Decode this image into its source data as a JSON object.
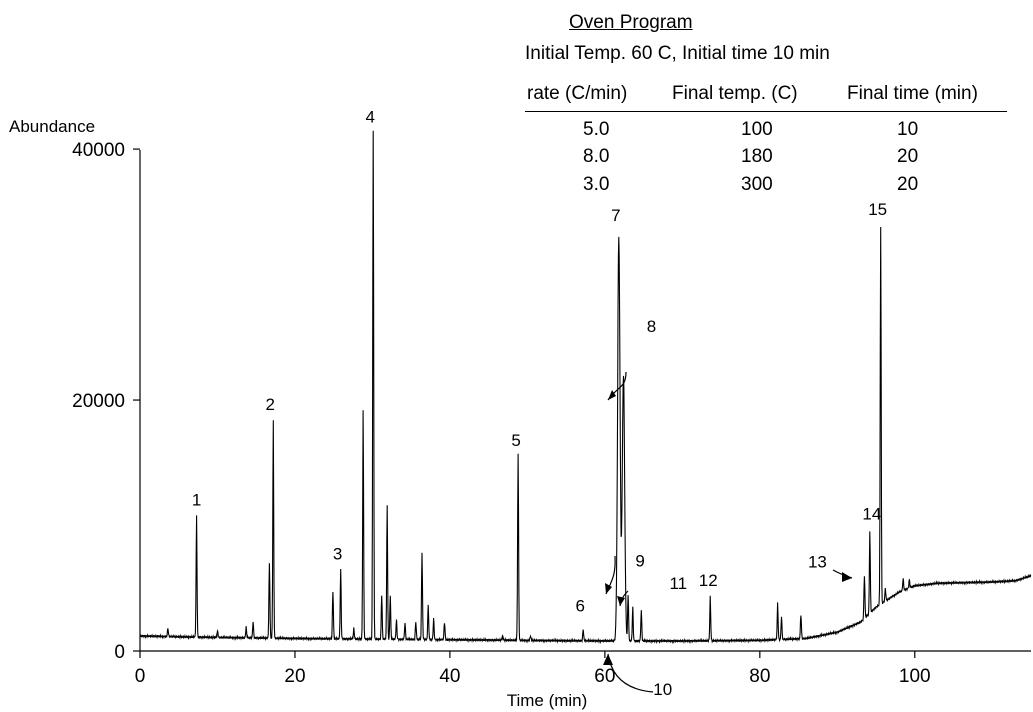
{
  "oven_program": {
    "title": "Oven Program",
    "initial": "Initial Temp. 60 C, Initial time 10 min",
    "headers": [
      "rate (C/min)",
      "Final temp. (C)",
      "Final time (min)"
    ],
    "rows": [
      [
        "5.0",
        "100",
        "10"
      ],
      [
        "8.0",
        "180",
        "20"
      ],
      [
        "3.0",
        "300",
        "20"
      ]
    ]
  },
  "chart_data": {
    "type": "line",
    "title": "",
    "xlabel": "Time (min)",
    "ylabel": "Abundance",
    "xlim": [
      0,
      115
    ],
    "ylim": [
      0,
      42000
    ],
    "xticks": [
      0,
      20,
      40,
      60,
      80,
      100
    ],
    "yticks": [
      0,
      20000,
      40000
    ],
    "grid": false,
    "line_color": "#000000",
    "baseline_points": [
      [
        0,
        1200
      ],
      [
        8,
        1100
      ],
      [
        20,
        1000
      ],
      [
        40,
        900
      ],
      [
        55,
        820
      ],
      [
        62,
        800
      ],
      [
        70,
        800
      ],
      [
        80,
        850
      ],
      [
        86,
        1000
      ],
      [
        90,
        1500
      ],
      [
        93,
        2300
      ],
      [
        95,
        3500
      ],
      [
        98,
        4700
      ],
      [
        100,
        5200
      ],
      [
        103,
        5400
      ],
      [
        110,
        5500
      ],
      [
        113,
        5600
      ],
      [
        115,
        6000
      ]
    ],
    "peaks": [
      {
        "x": 3.6,
        "y": 1800
      },
      {
        "x": 7.3,
        "y": 10800
      },
      {
        "x": 10,
        "y": 1600
      },
      {
        "x": 13.7,
        "y": 1900
      },
      {
        "x": 14.6,
        "y": 2300
      },
      {
        "x": 16.7,
        "y": 7000
      },
      {
        "x": 17.2,
        "y": 18400
      },
      {
        "x": 24.9,
        "y": 4800
      },
      {
        "x": 25.9,
        "y": 6500
      },
      {
        "x": 27.6,
        "y": 1800
      },
      {
        "x": 28.8,
        "y": 19200
      },
      {
        "x": 30.1,
        "y": 41500
      },
      {
        "x": 31.2,
        "y": 4500
      },
      {
        "x": 31.9,
        "y": 11700
      },
      {
        "x": 32.3,
        "y": 4500
      },
      {
        "x": 33.1,
        "y": 2500
      },
      {
        "x": 34.2,
        "y": 2200
      },
      {
        "x": 35.6,
        "y": 2300
      },
      {
        "x": 36.4,
        "y": 7800
      },
      {
        "x": 37.2,
        "y": 3600
      },
      {
        "x": 37.9,
        "y": 2600
      },
      {
        "x": 39.3,
        "y": 2300
      },
      {
        "x": 46.8,
        "y": 1200
      },
      {
        "x": 48.8,
        "y": 15700
      },
      {
        "x": 50.4,
        "y": 1200
      },
      {
        "x": 57.2,
        "y": 1700
      },
      {
        "x": 61.8,
        "y": 33000
      },
      {
        "x": 62.4,
        "y": 22000
      },
      {
        "x": 63.0,
        "y": 4500
      },
      {
        "x": 63.6,
        "y": 3500
      },
      {
        "x": 64.7,
        "y": 3200
      },
      {
        "x": 73.6,
        "y": 4300
      },
      {
        "x": 82.3,
        "y": 3800
      },
      {
        "x": 82.8,
        "y": 2700
      },
      {
        "x": 85.3,
        "y": 2900
      },
      {
        "x": 93.5,
        "y": 6000
      },
      {
        "x": 94.2,
        "y": 9600
      },
      {
        "x": 95.6,
        "y": 33700
      },
      {
        "x": 96.2,
        "y": 5000
      },
      {
        "x": 98.5,
        "y": 5800
      },
      {
        "x": 99.3,
        "y": 5700
      }
    ],
    "peak_labels": [
      {
        "label": "1",
        "x": 7.3,
        "y": 10800
      },
      {
        "label": "2",
        "x": 17.2,
        "y": 18400
      },
      {
        "label": "3",
        "x": 25.9,
        "y": 6500
      },
      {
        "label": "4",
        "x": 30.1,
        "y": 41500
      },
      {
        "label": "5",
        "x": 48.8,
        "y": 15700
      },
      {
        "label": "6",
        "x": 57.2,
        "y": 1700
      },
      {
        "label": "7",
        "x": 61.8,
        "y": 33000
      },
      {
        "label": "8",
        "x": 62.4,
        "y": 22000
      },
      {
        "label": "9",
        "x": 63.0,
        "y": 4500
      },
      {
        "label": "10",
        "x": 63.6,
        "y": 3500
      },
      {
        "label": "11",
        "x": 64.7,
        "y": 3200
      },
      {
        "label": "12",
        "x": 73.6,
        "y": 4300
      },
      {
        "label": "13",
        "x": 93.5,
        "y": 6000
      },
      {
        "label": "14",
        "x": 94.2,
        "y": 9600
      },
      {
        "label": "15",
        "x": 95.6,
        "y": 33700
      }
    ]
  }
}
